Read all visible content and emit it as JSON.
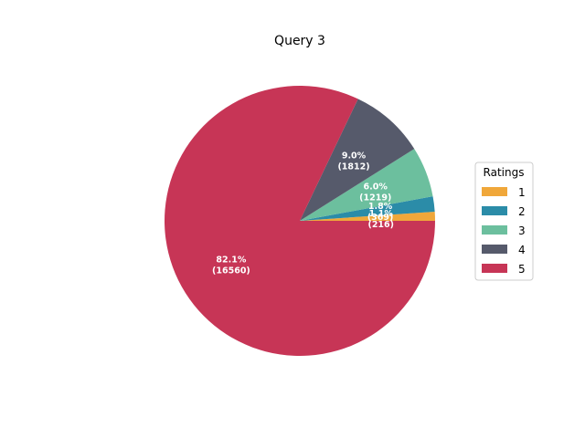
{
  "chart_data": {
    "type": "pie",
    "title": "Query 3",
    "legend_title": "Ratings",
    "legend_position": "right",
    "slices": [
      {
        "label": "1",
        "percent": "1.1%",
        "count": "(216)",
        "value": 216,
        "color": "#f0a73a"
      },
      {
        "label": "2",
        "percent": "1.8%",
        "count": "(369)",
        "value": 369,
        "color": "#2b8ca8"
      },
      {
        "label": "3",
        "percent": "6.0%",
        "count": "(1219)",
        "value": 1219,
        "color": "#6cbf9e"
      },
      {
        "label": "4",
        "percent": "9.0%",
        "count": "(1812)",
        "value": 1812,
        "color": "#565a6b"
      },
      {
        "label": "5",
        "percent": "82.1%",
        "count": "(16560)",
        "value": 16560,
        "color": "#c73556"
      }
    ]
  }
}
